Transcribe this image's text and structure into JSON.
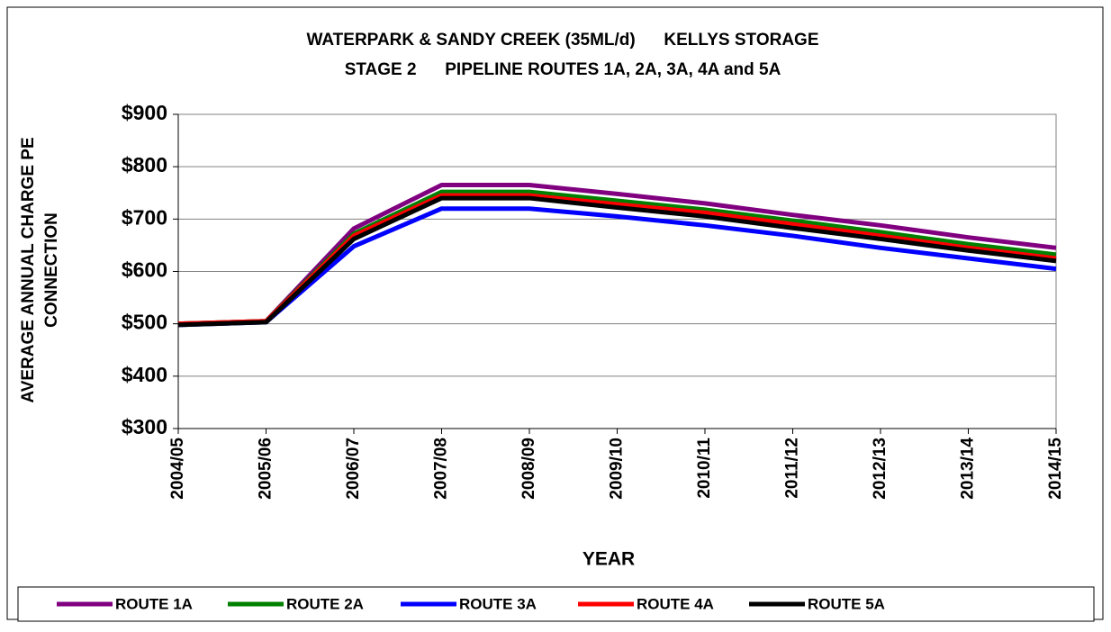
{
  "chart_data": {
    "type": "line",
    "title": [
      "WATERPARK & SANDY CREEK (35ML/d)      KELLYS STORAGE",
      "STAGE 2      PIPELINE ROUTES 1A, 2A, 3A, 4A and 5A"
    ],
    "xlabel": "YEAR",
    "ylabel": [
      "AVERAGE ANNUAL CHARGE PE",
      "CONNECTION"
    ],
    "categories": [
      "2004/05",
      "2005/06",
      "2006/07",
      "2007/08",
      "2008/09",
      "2009/10",
      "2010/11",
      "2011/12",
      "2012/13",
      "2013/14",
      "2014/15"
    ],
    "series": [
      {
        "name": "ROUTE 1A",
        "color": "#800080",
        "values": [
          500,
          505,
          682,
          765,
          765,
          748,
          730,
          708,
          688,
          665,
          645
        ]
      },
      {
        "name": "ROUTE 2A",
        "color": "#008000",
        "values": [
          500,
          505,
          672,
          752,
          752,
          735,
          718,
          697,
          675,
          652,
          632
        ]
      },
      {
        "name": "ROUTE 3A",
        "color": "#0000ff",
        "values": [
          498,
          503,
          648,
          720,
          720,
          705,
          688,
          668,
          645,
          625,
          605
        ]
      },
      {
        "name": "ROUTE 4A",
        "color": "#ff0000",
        "values": [
          500,
          505,
          668,
          745,
          745,
          728,
          712,
          690,
          668,
          645,
          625
        ]
      },
      {
        "name": "ROUTE 5A",
        "color": "#000000",
        "values": [
          498,
          503,
          662,
          740,
          740,
          722,
          705,
          683,
          662,
          640,
          620
        ]
      }
    ],
    "ylim": [
      300,
      900
    ],
    "yticks": [
      {
        "value": 300,
        "label": "$300"
      },
      {
        "value": 400,
        "label": "$400"
      },
      {
        "value": 500,
        "label": "$500"
      },
      {
        "value": 600,
        "label": "$600"
      },
      {
        "value": 700,
        "label": "$700"
      },
      {
        "value": 800,
        "label": "$800"
      },
      {
        "value": 900,
        "label": "$900"
      }
    ],
    "grid": true,
    "legend": "bottom"
  }
}
